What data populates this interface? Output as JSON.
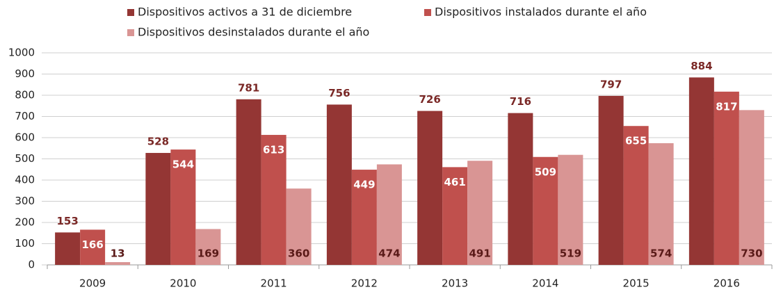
{
  "chart_data": {
    "type": "bar",
    "categories": [
      "2009",
      "2010",
      "2011",
      "2012",
      "2013",
      "2014",
      "2015",
      "2016"
    ],
    "series": [
      {
        "name": "Dispositivos activos a 31 de diciembre",
        "color": "#943634",
        "values": [
          153,
          528,
          781,
          756,
          726,
          716,
          797,
          884
        ]
      },
      {
        "name": "Dispositivos instalados durante el año",
        "color": "#c0504d",
        "values": [
          166,
          544,
          613,
          449,
          461,
          509,
          655,
          817
        ]
      },
      {
        "name": "Dispositivos desinstalados durante el año",
        "color": "#d99594",
        "values": [
          13,
          169,
          360,
          474,
          491,
          519,
          574,
          730
        ]
      }
    ],
    "ylim": [
      0,
      1000
    ],
    "yticks": [
      0,
      100,
      200,
      300,
      400,
      500,
      600,
      700,
      800,
      900,
      1000
    ],
    "grid": true
  }
}
